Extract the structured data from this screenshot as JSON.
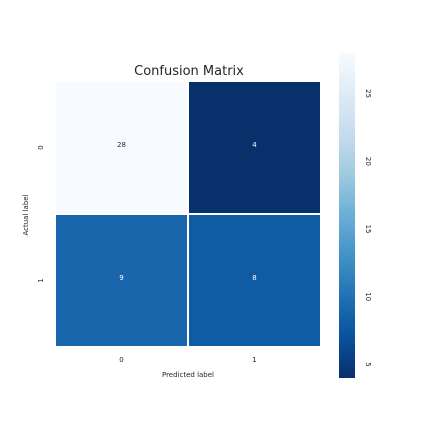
{
  "chart_data": {
    "type": "heatmap",
    "title": "Confusion Matrix",
    "xlabel": "Predicted label",
    "ylabel": "Actual label",
    "x_categories": [
      "0",
      "1"
    ],
    "y_categories": [
      "0",
      "1"
    ],
    "values": [
      [
        28,
        4
      ],
      [
        9,
        8
      ]
    ],
    "cell_labels": [
      [
        "28",
        "4"
      ],
      [
        "9",
        "8"
      ]
    ],
    "colormap": "Blues",
    "color_range": [
      4,
      28
    ],
    "colorbar": {
      "ticks": [
        5,
        10,
        15,
        20,
        25
      ],
      "tick_labels": [
        "5",
        "10",
        "15",
        "20",
        "25"
      ]
    },
    "colors": {
      "low": "#f7fbff",
      "high": "#08306b",
      "text_light_cell": "#262626",
      "text_dark_cell": "#ffffff"
    }
  }
}
